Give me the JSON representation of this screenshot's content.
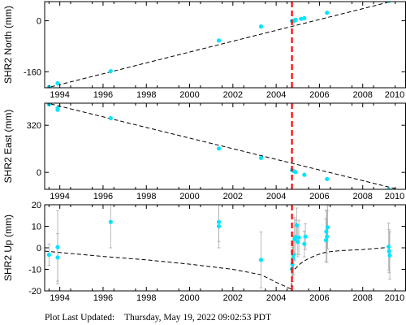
{
  "chart_data": [
    {
      "type": "scatter",
      "ylabel": "SHR2 North (mm)",
      "xlim": [
        1993.3,
        2010
      ],
      "ylim": [
        -210,
        60
      ],
      "xticks": [
        1994,
        1996,
        1998,
        2000,
        2002,
        2004,
        2006,
        2008,
        2010
      ],
      "yticks": [
        -160,
        0
      ],
      "points": [
        {
          "x": 1993.5,
          "y": -208,
          "err": 2
        },
        {
          "x": 1993.9,
          "y": -196,
          "err": 2
        },
        {
          "x": 1996.35,
          "y": -158,
          "err": 2
        },
        {
          "x": 2001.35,
          "y": -62,
          "err": 2
        },
        {
          "x": 2003.3,
          "y": -18,
          "err": 2
        },
        {
          "x": 2004.73,
          "y": -1,
          "err": 2
        },
        {
          "x": 2004.82,
          "y": 0,
          "err": 2
        },
        {
          "x": 2004.9,
          "y": 3,
          "err": 2
        },
        {
          "x": 2005.15,
          "y": 6,
          "err": 2
        },
        {
          "x": 2005.3,
          "y": 8,
          "err": 2
        },
        {
          "x": 2006.35,
          "y": 25,
          "err": 2
        },
        {
          "x": 2009.2,
          "y": 62,
          "err": 2
        }
      ],
      "model": [
        [
          1993.3,
          -212
        ],
        [
          2010,
          72
        ]
      ]
    },
    {
      "type": "scatter",
      "ylabel": "SHR2 East (mm)",
      "xlim": [
        1993.3,
        2010
      ],
      "ylim": [
        -115,
        470
      ],
      "xticks": [
        1994,
        1996,
        1998,
        2000,
        2002,
        2004,
        2006,
        2008,
        2010
      ],
      "yticks": [
        0,
        320
      ],
      "points": [
        {
          "x": 1993.5,
          "y": 462,
          "err": 3
        },
        {
          "x": 1993.9,
          "y": 435,
          "err": 3
        },
        {
          "x": 1993.9,
          "y": 425,
          "err": 3
        },
        {
          "x": 1996.35,
          "y": 368,
          "err": 3
        },
        {
          "x": 2001.35,
          "y": 162,
          "err": 3
        },
        {
          "x": 2003.3,
          "y": 98,
          "err": 3
        },
        {
          "x": 2004.73,
          "y": 16,
          "err": 3
        },
        {
          "x": 2004.82,
          "y": 8,
          "err": 3
        },
        {
          "x": 2004.9,
          "y": 2,
          "err": 3
        },
        {
          "x": 2005.3,
          "y": -16,
          "err": 3
        },
        {
          "x": 2006.35,
          "y": -45,
          "err": 3
        },
        {
          "x": 2009.2,
          "y": -118,
          "err": 3
        }
      ],
      "model": [
        [
          1993.3,
          475
        ],
        [
          2010,
          -128
        ]
      ]
    },
    {
      "type": "scatter",
      "ylabel": "SHR2 Up (mm)",
      "xlim": [
        1993.3,
        2010
      ],
      "ylim": [
        -20,
        20
      ],
      "xticks": [
        1994,
        1996,
        1998,
        2000,
        2002,
        2004,
        2006,
        2008,
        2010
      ],
      "yticks": [
        -20,
        -10,
        0,
        10,
        20
      ],
      "points": [
        {
          "x": 1993.5,
          "y": -3.2,
          "err": 5
        },
        {
          "x": 1993.9,
          "y": -4.5,
          "err": 11
        },
        {
          "x": 1993.9,
          "y": 0.3,
          "err": 17
        },
        {
          "x": 1996.35,
          "y": 12,
          "err": 12
        },
        {
          "x": 2001.35,
          "y": 12,
          "err": 9
        },
        {
          "x": 2001.35,
          "y": 10,
          "err": 10
        },
        {
          "x": 2003.3,
          "y": -5.6,
          "err": 13
        },
        {
          "x": 2004.73,
          "y": -9.8,
          "err": 8
        },
        {
          "x": 2004.75,
          "y": -7.7,
          "err": 8
        },
        {
          "x": 2004.78,
          "y": -5,
          "err": 8
        },
        {
          "x": 2004.8,
          "y": -3.2,
          "err": 9
        },
        {
          "x": 2004.85,
          "y": 4,
          "err": 10
        },
        {
          "x": 2004.9,
          "y": 5,
          "err": 8
        },
        {
          "x": 2004.95,
          "y": 10.5,
          "err": 8
        },
        {
          "x": 2005.0,
          "y": 2.8,
          "err": 7
        },
        {
          "x": 2005.05,
          "y": 4.8,
          "err": 8
        },
        {
          "x": 2005.3,
          "y": 1.8,
          "err": 6
        },
        {
          "x": 2005.35,
          "y": 5.2,
          "err": 6
        },
        {
          "x": 2006.3,
          "y": 3.5,
          "err": 10
        },
        {
          "x": 2006.32,
          "y": 7.5,
          "err": 10
        },
        {
          "x": 2006.35,
          "y": 5.2,
          "err": 12
        },
        {
          "x": 2006.38,
          "y": 9.5,
          "err": 10
        },
        {
          "x": 2009.2,
          "y": 0.5,
          "err": 11
        },
        {
          "x": 2009.22,
          "y": -1.6,
          "err": 10
        },
        {
          "x": 2009.25,
          "y": -3.5,
          "err": 11
        }
      ],
      "model": [
        [
          1993.3,
          -1.5
        ],
        [
          1994,
          -2.2
        ],
        [
          1996,
          -4
        ],
        [
          1998,
          -5.6
        ],
        [
          2000,
          -7.6
        ],
        [
          2002,
          -10
        ],
        [
          2003.3,
          -12.5
        ],
        [
          2004,
          -16
        ],
        [
          2004.7,
          -19.2
        ],
        [
          2004.73,
          -10.8
        ],
        [
          2004.9,
          -9.5
        ],
        [
          2005.1,
          -7.5
        ],
        [
          2005.4,
          -5.5
        ],
        [
          2005.8,
          -3.6
        ],
        [
          2006.3,
          -2
        ],
        [
          2007,
          -1.3
        ],
        [
          2008,
          -0.8
        ],
        [
          2009.2,
          0.2
        ]
      ]
    }
  ],
  "earthquake_x": 2004.73,
  "colors": {
    "points": "#00e5ff",
    "error_bars": "#aaaaaa",
    "model": "#000000",
    "earthquake": "#ff0000"
  },
  "footer": {
    "label": "Plot Last Updated:",
    "timestamp": "Thursday, May 19, 2022 09:02:53 PDT"
  }
}
